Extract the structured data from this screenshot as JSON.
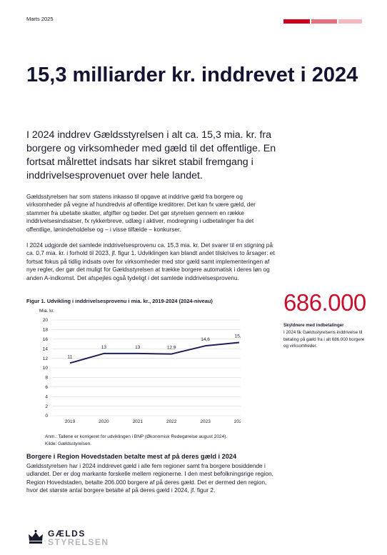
{
  "header": {
    "date": "Marts 2025",
    "accent_colors": [
      "#d0021b",
      "#e8707c",
      "#f4b8be"
    ]
  },
  "title": "15,3 milliarder kr. inddrevet i 2024",
  "lead": "I 2024 inddrev Gældsstyrelsen i alt ca. 15,3 mia. kr. fra borgere og virksomheder med gæld til det offentlige. En fortsat målrettet indsats har sikret stabil fremgang i inddrivelsesprovenuet over hele landet.",
  "paragraphs": {
    "p1": "Gældsstyrelsen har som statens inkasso til opgave at inddrive gæld fra borgere og virksomheder på vegne af hundredvis af offentlige kreditorer. Det kan fx være gæld, der stammer fra ubetalte skatter, afgifter og bøder. Det gør styrelsen gennem en række inddrivelsesindsatser, fx rykkerbreve, udlæg i aktiver, modregning i udbetalinger fra det offentlige, lønindeholdelse og – i visse tilfælde – konkurser.",
    "p2": "I 2024 udgjorde det samlede inddrivelsesprovenu ca. 15,3 mia. kr. Det svarer til en stigning på ca. 0,7 mia. kr. i forhold til 2023, jf. figur 1. Udviklingen kan blandt andet tilskrives to årsager: et fortsat fokus på tidlig indsats over for virksomheder med stor gæld samt implementeringen af nye regler, der gør det muligt for Gældsstyrelsen at trække borgere automatisk i deres løn og anden A-indkomst. Det afspejles også tydeligt i det samlede inddrivelsesprovenu.",
    "p3": "Gældsstyrelsen har i 2024 inddrevet gæld i alle fem regioner samt fra borgere bosiddende i udlandet. Der er dog markante forskelle mellem regionerne. I den mest befolkningsrige region, Region Hovedstaden, betalte 206.000 borgere af på deres gæld. Det er dermed den region, hvor det største antal borgere betalte af på deres gæld i 2024, jf. figur 2."
  },
  "figure": {
    "caption": "Figur 1. Udvikling i inddrivelsesprovenu i mia. kr., 2019-2024 (2024-niveau)",
    "note_line1": "Anm.: Tallene er korrigeret for udviklingen i BNP (Økonomisk Redegørelse august 2024).",
    "note_line2": "Kilde: Gældsstyrelsen."
  },
  "chart_data": {
    "type": "line",
    "ylabel": "Mia. kr.",
    "x": [
      "2019",
      "2020",
      "2021",
      "2022",
      "2023",
      "2024"
    ],
    "values": [
      11,
      13,
      13,
      12.9,
      14.6,
      15.3
    ],
    "data_labels": [
      "11",
      "13",
      "13",
      "12,9",
      "14,6",
      "15,3"
    ],
    "ylim": [
      0,
      20
    ],
    "yticks": [
      "0",
      "2",
      "4",
      "6",
      "8",
      "10",
      "12",
      "14",
      "16",
      "18",
      "20"
    ],
    "grid": true,
    "line_color": "#1f1f5c"
  },
  "sub_heading": "Borgere i Region Hovedstaden betalte mest af på deres gæld i 2024",
  "sidebar": {
    "number": "686.000",
    "label": "Skyldnere med indbetalinger",
    "text": "I 2024 fik Gældsstyrelsens inddrivelse til betaling på gæld fra i alt 686.000 borgere og virksomheder.",
    "number_color": "#c8102e"
  },
  "logo": {
    "line1": "GÆLDS",
    "line2": "STYRELSEN"
  }
}
